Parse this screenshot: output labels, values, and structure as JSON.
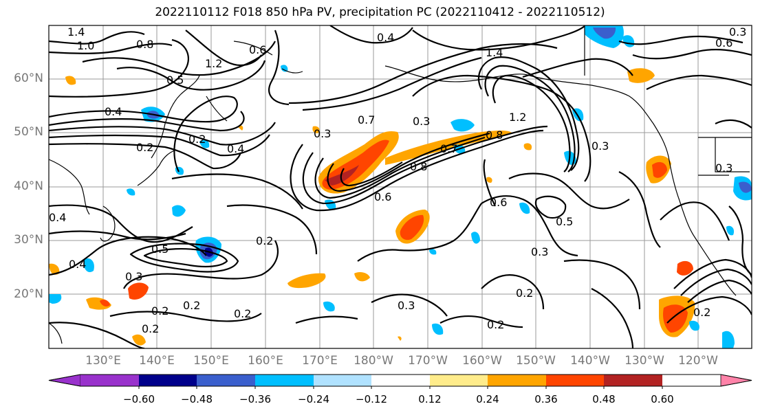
{
  "title": "2022110112 F018 850 hPa PV, precipitation PC (2022110412 - 2022110512)",
  "lat_labels": [
    "60°N",
    "50°N",
    "40°N",
    "30°N",
    "20°N"
  ],
  "lon_labels": [
    "130°E",
    "140°E",
    "150°E",
    "160°E",
    "170°E",
    "180°W",
    "170°W",
    "160°W",
    "150°W",
    "140°W",
    "130°W",
    "120°W"
  ],
  "colorbar": {
    "ticks": [
      "−0.60",
      "−0.48",
      "−0.36",
      "−0.24",
      "−0.12",
      "0.12",
      "0.24",
      "0.36",
      "0.48",
      "0.60"
    ],
    "colors": [
      "#9932cc",
      "#00008b",
      "#3a5fcd",
      "#00bfff",
      "#b0e2ff",
      "#ffffff",
      "#ffec8b",
      "#ffa500",
      "#ff4500",
      "#b22222",
      "#ff83a9"
    ]
  },
  "contour_labels": [
    "1.4",
    "1.0",
    "0.8",
    "0.6",
    "1.2",
    "0.5",
    "0.4",
    "0.3",
    "0.2",
    "0.7",
    "0.8",
    "0.6",
    "0.5",
    "0.3",
    "0.2",
    "0.2",
    "0.2",
    "0.3",
    "0.5",
    "0.6",
    "0.2",
    "0.2",
    "0.3",
    "0.2",
    "0.2",
    "0.4",
    "0.7",
    "1.4",
    "1.2",
    "0.3",
    "0.8",
    "0.2",
    "0.4",
    "0.2",
    "0.3",
    "0.6",
    "0.4",
    "0.3",
    "0.3",
    "0.4"
  ]
}
